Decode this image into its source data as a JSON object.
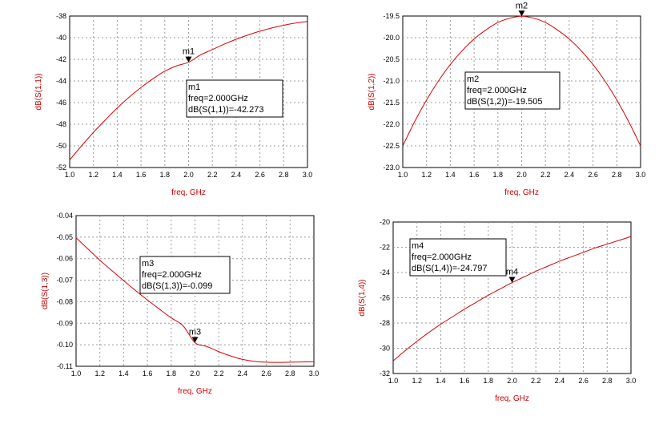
{
  "chart_data": [
    {
      "type": "line",
      "xlabel": "freq, GHz",
      "ylabel": "dB(S(1,1))",
      "xlim": [
        1.0,
        3.0
      ],
      "ylim": [
        -52,
        -38
      ],
      "xticks": [
        "1.0",
        "1.2",
        "1.4",
        "1.6",
        "1.8",
        "2.0",
        "2.2",
        "2.4",
        "2.6",
        "2.8",
        "3.0"
      ],
      "yticks": [
        "-52",
        "-50",
        "-48",
        "-46",
        "-44",
        "-42",
        "-40",
        "-38"
      ],
      "grid": true,
      "series": [
        {
          "x": [
            1.0,
            1.1,
            1.2,
            1.3,
            1.4,
            1.5,
            1.6,
            1.7,
            1.8,
            1.9,
            2.0,
            2.1,
            2.2,
            2.3,
            2.4,
            2.5,
            2.6,
            2.7,
            2.8,
            2.9,
            3.0
          ],
          "values": [
            -51.3,
            -50.0,
            -48.75,
            -47.6,
            -46.5,
            -45.5,
            -44.6,
            -43.8,
            -43.1,
            -42.6,
            -42.273,
            -41.6,
            -41.1,
            -40.6,
            -40.15,
            -39.75,
            -39.4,
            -39.1,
            -38.85,
            -38.65,
            -38.5
          ]
        }
      ],
      "marker": {
        "name": "m1",
        "x": 2.0,
        "y": -42.273
      },
      "readout": [
        "m1",
        "freq=2.000GHz",
        "dB(S(1,1))=-42.273"
      ]
    },
    {
      "type": "line",
      "xlabel": "freq, GHz",
      "ylabel": "dB(S(1,2))",
      "xlim": [
        1.0,
        3.0
      ],
      "ylim": [
        -23.0,
        -19.5
      ],
      "xticks": [
        "1.0",
        "1.2",
        "1.4",
        "1.6",
        "1.8",
        "2.0",
        "2.2",
        "2.4",
        "2.6",
        "2.8",
        "3.0"
      ],
      "yticks": [
        "-23.0",
        "-22.5",
        "-22.0",
        "-21.5",
        "-21.0",
        "-20.5",
        "-20.0",
        "-19.5"
      ],
      "grid": true,
      "series": [
        {
          "x": [
            1.0,
            1.1,
            1.2,
            1.3,
            1.4,
            1.5,
            1.6,
            1.7,
            1.8,
            1.9,
            2.0,
            2.1,
            2.2,
            2.3,
            2.4,
            2.5,
            2.6,
            2.7,
            2.8,
            2.9,
            3.0
          ],
          "values": [
            -22.5,
            -21.94,
            -21.44,
            -21.0,
            -20.62,
            -20.3,
            -20.03,
            -19.82,
            -19.65,
            -19.55,
            -19.505,
            -19.55,
            -19.65,
            -19.82,
            -20.03,
            -20.3,
            -20.62,
            -21.0,
            -21.44,
            -21.94,
            -22.5
          ]
        }
      ],
      "marker": {
        "name": "m2",
        "x": 2.0,
        "y": -19.505
      },
      "readout": [
        "m2",
        "freq=2.000GHz",
        "dB(S(1,2))=-19.505"
      ]
    },
    {
      "type": "line",
      "xlabel": "freq, GHz",
      "ylabel": "dB(S(1,3))",
      "xlim": [
        1.0,
        3.0
      ],
      "ylim": [
        -0.11,
        -0.04
      ],
      "xticks": [
        "1.0",
        "1.2",
        "1.4",
        "1.6",
        "1.8",
        "2.0",
        "2.2",
        "2.4",
        "2.6",
        "2.8",
        "3.0"
      ],
      "yticks": [
        "-0.11",
        "-0.10",
        "-0.09",
        "-0.08",
        "-0.07",
        "-0.06",
        "-0.05",
        "-0.04"
      ],
      "grid": true,
      "series": [
        {
          "x": [
            1.0,
            1.1,
            1.2,
            1.3,
            1.4,
            1.5,
            1.6,
            1.7,
            1.8,
            1.9,
            2.0,
            2.1,
            2.2,
            2.3,
            2.4,
            2.5,
            2.6,
            2.7,
            2.8,
            2.9,
            3.0
          ],
          "values": [
            -0.0503,
            -0.0555,
            -0.0607,
            -0.0655,
            -0.0702,
            -0.0748,
            -0.0792,
            -0.0834,
            -0.0875,
            -0.0912,
            -0.099,
            -0.1008,
            -0.1032,
            -0.1052,
            -0.1068,
            -0.1077,
            -0.1081,
            -0.1082,
            -0.1081,
            -0.108,
            -0.1079
          ]
        }
      ],
      "marker": {
        "name": "m3",
        "x": 2.0,
        "y": -0.099
      },
      "readout": [
        "m3",
        "freq=2.000GHz",
        "dB(S(1,3))=-0.099"
      ]
    },
    {
      "type": "line",
      "xlabel": "freq, GHz",
      "ylabel": "dB(S(1,4))",
      "xlim": [
        1.0,
        3.0
      ],
      "ylim": [
        -32,
        -20
      ],
      "xticks": [
        "1.0",
        "1.2",
        "1.4",
        "1.6",
        "1.8",
        "2.0",
        "2.2",
        "2.4",
        "2.6",
        "2.8",
        "3.0"
      ],
      "yticks": [
        "-32",
        "-30",
        "-28",
        "-26",
        "-24",
        "-22",
        "-20"
      ],
      "grid": true,
      "series": [
        {
          "x": [
            1.0,
            1.1,
            1.2,
            1.3,
            1.4,
            1.5,
            1.6,
            1.7,
            1.8,
            1.9,
            2.0,
            2.1,
            2.2,
            2.3,
            2.4,
            2.5,
            2.6,
            2.7,
            2.8,
            2.9,
            3.0
          ],
          "values": [
            -31.0,
            -30.2,
            -29.45,
            -28.75,
            -28.1,
            -27.5,
            -26.9,
            -26.35,
            -25.8,
            -25.3,
            -24.797,
            -24.35,
            -23.9,
            -23.5,
            -23.1,
            -22.75,
            -22.4,
            -22.05,
            -21.75,
            -21.45,
            -21.15
          ]
        }
      ],
      "marker": {
        "name": "m4",
        "x": 2.0,
        "y": -24.797
      },
      "readout": [
        "m4",
        "freq=2.000GHz",
        "dB(S(1,4))=-24.797"
      ]
    }
  ]
}
